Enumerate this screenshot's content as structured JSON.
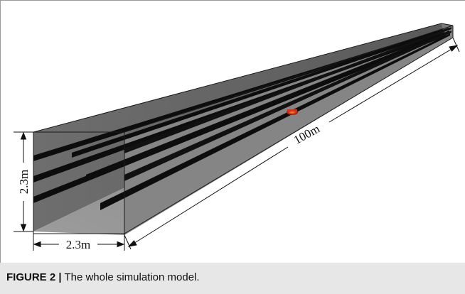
{
  "figure": {
    "caption_label": "FIGURE 2 |",
    "caption_text": "The whole simulation model."
  },
  "diagram": {
    "dimension_height": "2.3m",
    "dimension_width": "2.3m",
    "dimension_length": "100m"
  },
  "colors": {
    "tunnel_face": "#737373",
    "tunnel_floor": "#9a9a9a",
    "cable_tray": "#0d0d0d",
    "fire_source": "#d8321c",
    "fire_glow": "#f0a020"
  }
}
